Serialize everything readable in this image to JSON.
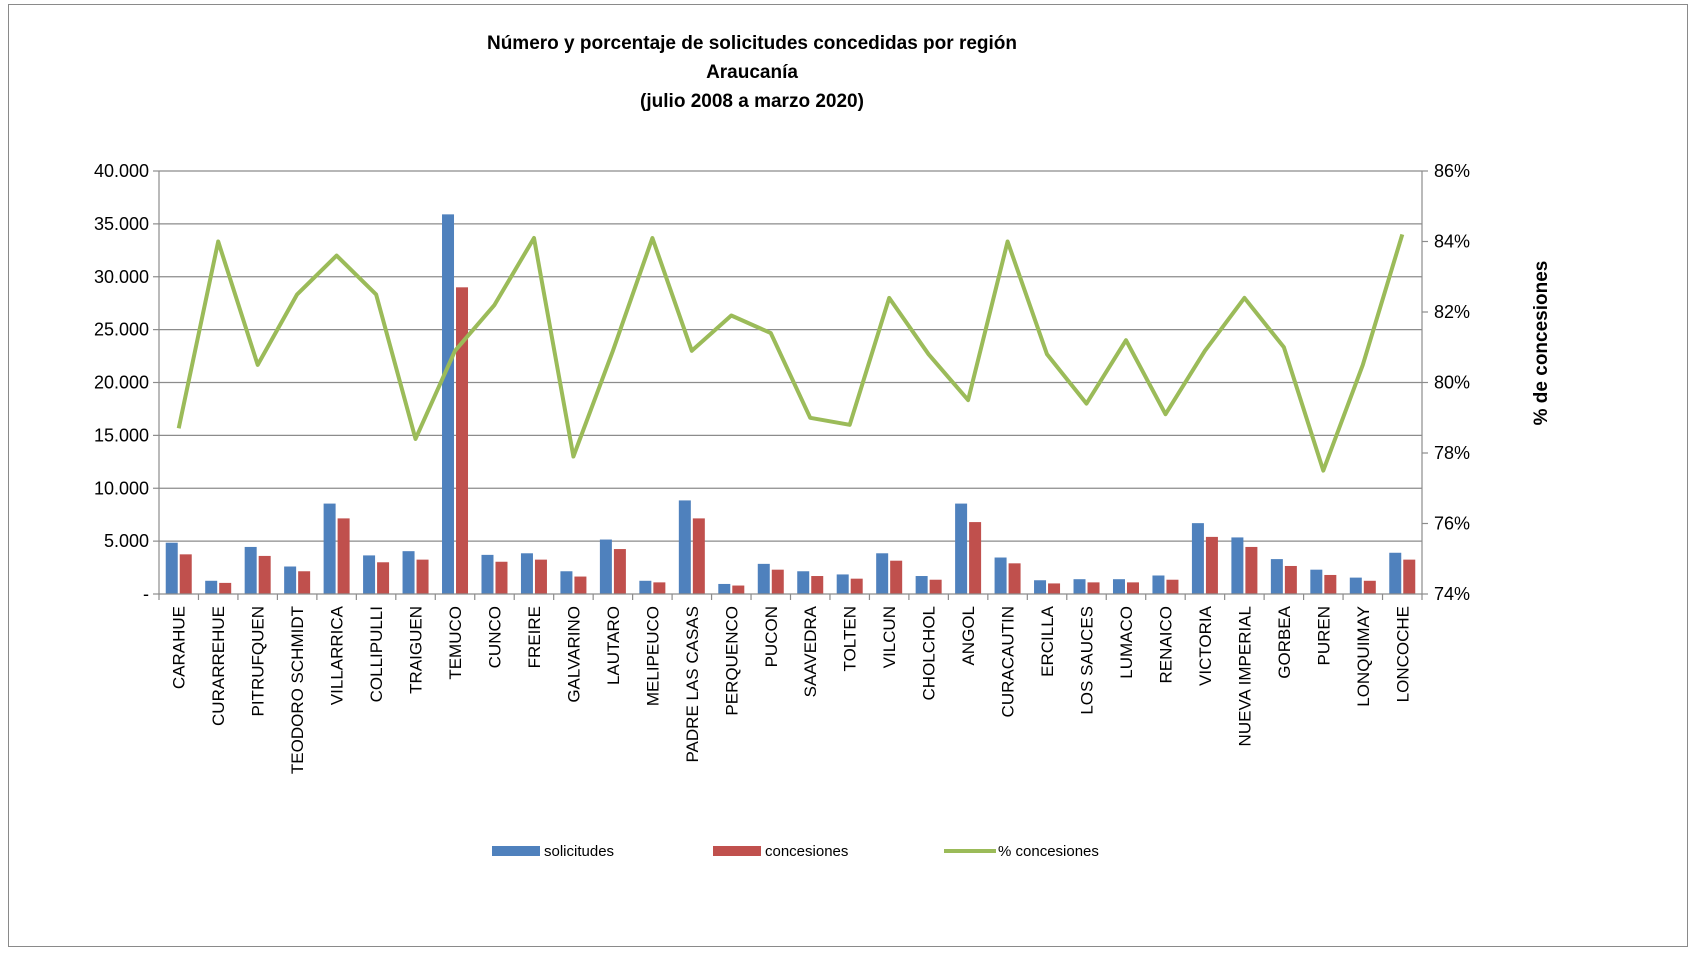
{
  "chart_data": {
    "type": "bar",
    "title_lines": [
      "Número y porcentaje de solicitudes concedidas por región",
      "Araucanía",
      "(julio 2008 a marzo 2020)"
    ],
    "categories": [
      "CARAHUE",
      "CURARREHUE",
      "PITRUFQUEN",
      "TEODORO SCHMIDT",
      "VILLARRICA",
      "COLLIPULLI",
      "TRAIGUEN",
      "TEMUCO",
      "CUNCO",
      "FREIRE",
      "GALVARINO",
      "LAUTARO",
      "MELIPEUCO",
      "PADRE LAS CASAS",
      "PERQUENCO",
      "PUCON",
      "SAAVEDRA",
      "TOLTEN",
      "VILCUN",
      "CHOLCHOL",
      "ANGOL",
      "CURACAUTIN",
      "ERCILLA",
      "LOS SAUCES",
      "LUMACO",
      "RENAICO",
      "VICTORIA",
      "NUEVA IMPERIAL",
      "GORBEA",
      "PUREN",
      "LONQUIMAY",
      "LONCOCHE"
    ],
    "series": [
      {
        "name": "solicitudes",
        "type": "bar",
        "axis": "left",
        "color": "#4f81bd",
        "values": [
          4850,
          1250,
          4450,
          2600,
          8550,
          3650,
          4050,
          35900,
          3700,
          3850,
          2150,
          5150,
          1250,
          8850,
          950,
          2850,
          2150,
          1850,
          3850,
          1700,
          8550,
          3450,
          1300,
          1400,
          1400,
          1750,
          6700,
          5350,
          3300,
          2300,
          1550,
          3900
        ]
      },
      {
        "name": "concesiones",
        "type": "bar",
        "axis": "left",
        "color": "#c0504d",
        "values": [
          3750,
          1050,
          3600,
          2150,
          7150,
          3000,
          3250,
          29000,
          3050,
          3250,
          1650,
          4250,
          1100,
          7150,
          800,
          2300,
          1700,
          1450,
          3150,
          1350,
          6800,
          2900,
          1000,
          1100,
          1100,
          1350,
          5400,
          4450,
          2650,
          1800,
          1250,
          3250
        ]
      },
      {
        "name": "% concesiones",
        "type": "line",
        "axis": "right",
        "color": "#9bbb59",
        "values": [
          78.7,
          84.0,
          80.5,
          82.5,
          83.6,
          82.5,
          78.4,
          80.9,
          82.2,
          84.1,
          77.9,
          80.9,
          84.1,
          80.9,
          81.9,
          81.4,
          79.0,
          78.8,
          82.4,
          80.8,
          79.5,
          84.0,
          80.8,
          79.4,
          81.2,
          79.1,
          80.9,
          82.4,
          81.0,
          77.5,
          80.5,
          84.2
        ]
      }
    ],
    "y_left": {
      "min": 0,
      "max": 40000,
      "ticks": [
        "-",
        "5.000",
        "10.000",
        "15.000",
        "20.000",
        "25.000",
        "30.000",
        "35.000",
        "40.000"
      ]
    },
    "y_right": {
      "min": 74,
      "max": 86,
      "label": "% de concesiones",
      "ticks": [
        "74%",
        "76%",
        "78%",
        "80%",
        "82%",
        "84%",
        "86%"
      ]
    },
    "grid": true,
    "legend_position": "bottom"
  }
}
